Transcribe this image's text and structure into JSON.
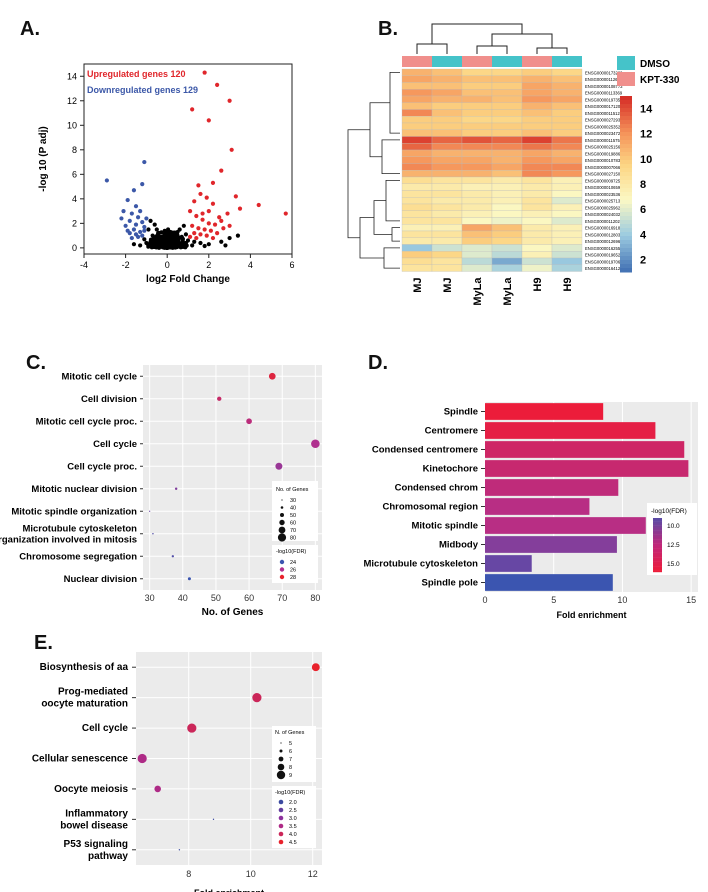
{
  "panel_labels": {
    "a": "A.",
    "b": "B.",
    "c": "C.",
    "d": "D.",
    "e": "E."
  },
  "chart_data": [
    {
      "panel": "A",
      "type": "scatter",
      "title": "",
      "xlabel": "log2 Fold Change",
      "ylabel": "-log 10 (P adj)",
      "xlim": [
        -4,
        6
      ],
      "ylim": [
        -0.5,
        15
      ],
      "xticks": [
        "-4",
        "-2",
        "0",
        "2",
        "4",
        "6"
      ],
      "yticks": [
        "0",
        "2",
        "4",
        "6",
        "8",
        "10",
        "12",
        "14"
      ],
      "annotations": {
        "up": "Upregulated genes 120",
        "down": "Downregulated genes 129"
      },
      "colors": {
        "up": "#e0262b",
        "down": "#3c58a8",
        "ns": "#000000"
      },
      "series": [
        {
          "name": "Upregulated",
          "color": "#e0262b",
          "points": [
            [
              1.8,
              14.3
            ],
            [
              2.4,
              13.3
            ],
            [
              1.2,
              11.3
            ],
            [
              3.0,
              12.0
            ],
            [
              2.0,
              10.4
            ],
            [
              3.1,
              8.0
            ],
            [
              2.6,
              6.3
            ],
            [
              2.2,
              5.3
            ],
            [
              1.5,
              5.1
            ],
            [
              3.3,
              4.2
            ],
            [
              4.4,
              3.5
            ],
            [
              5.7,
              2.8
            ],
            [
              2.9,
              2.8
            ],
            [
              3.5,
              3.2
            ],
            [
              1.6,
              4.4
            ],
            [
              1.9,
              4.1
            ],
            [
              1.3,
              3.8
            ],
            [
              2.2,
              3.6
            ],
            [
              1.1,
              3.0
            ],
            [
              2.5,
              2.5
            ],
            [
              1.4,
              2.6
            ],
            [
              1.7,
              2.3
            ],
            [
              2.0,
              2.0
            ],
            [
              2.3,
              1.9
            ],
            [
              1.2,
              1.8
            ],
            [
              1.5,
              1.6
            ],
            [
              1.8,
              1.5
            ],
            [
              2.1,
              1.4
            ],
            [
              2.7,
              1.6
            ],
            [
              1.3,
              1.2
            ],
            [
              1.6,
              1.1
            ],
            [
              1.9,
              1.0
            ],
            [
              2.4,
              1.2
            ],
            [
              1.1,
              0.9
            ],
            [
              1.4,
              0.8
            ],
            [
              2.2,
              0.8
            ],
            [
              3.0,
              1.8
            ],
            [
              2.6,
              2.2
            ],
            [
              1.7,
              2.8
            ],
            [
              2.0,
              3.0
            ]
          ]
        },
        {
          "name": "Downregulated",
          "color": "#3c58a8",
          "points": [
            [
              -2.9,
              5.5
            ],
            [
              -1.6,
              4.7
            ],
            [
              -1.2,
              5.2
            ],
            [
              -1.1,
              7.0
            ],
            [
              -1.9,
              3.9
            ],
            [
              -1.5,
              3.4
            ],
            [
              -1.3,
              3.0
            ],
            [
              -1.7,
              2.8
            ],
            [
              -2.1,
              3.0
            ],
            [
              -1.4,
              2.5
            ],
            [
              -1.8,
              2.2
            ],
            [
              -1.2,
              2.1
            ],
            [
              -1.5,
              1.9
            ],
            [
              -1.1,
              1.7
            ],
            [
              -1.6,
              1.5
            ],
            [
              -1.3,
              1.3
            ],
            [
              -1.9,
              1.4
            ],
            [
              -1.2,
              1.0
            ],
            [
              -1.4,
              0.9
            ],
            [
              -1.7,
              0.8
            ],
            [
              -2.0,
              1.8
            ],
            [
              -1.1,
              1.4
            ],
            [
              -1.5,
              1.1
            ],
            [
              -1.8,
              1.2
            ],
            [
              -2.2,
              2.4
            ],
            [
              -1.0,
              2.4
            ]
          ]
        },
        {
          "name": "Not significant",
          "color": "#000000",
          "points": [
            [
              -0.8,
              2.2
            ],
            [
              -0.6,
              1.9
            ],
            [
              -0.9,
              1.5
            ],
            [
              -0.4,
              1.2
            ],
            [
              -0.7,
              1.0
            ],
            [
              -0.5,
              0.8
            ],
            [
              -0.3,
              0.6
            ],
            [
              -0.8,
              0.5
            ],
            [
              -0.2,
              0.4
            ],
            [
              -0.6,
              0.3
            ],
            [
              -0.1,
              0.2
            ],
            [
              0.1,
              0.3
            ],
            [
              0.3,
              0.5
            ],
            [
              0.5,
              0.7
            ],
            [
              0.7,
              0.9
            ],
            [
              0.9,
              1.1
            ],
            [
              0.6,
              1.5
            ],
            [
              0.8,
              1.8
            ],
            [
              0.4,
              0.4
            ],
            [
              0.2,
              0.15
            ],
            [
              0.0,
              0.1
            ],
            [
              -0.4,
              0.25
            ],
            [
              0.6,
              0.25
            ],
            [
              0.9,
              0.4
            ],
            [
              1.0,
              0.6
            ],
            [
              1.3,
              0.5
            ],
            [
              1.6,
              0.4
            ],
            [
              2.0,
              0.3
            ],
            [
              2.6,
              0.5
            ],
            [
              3.0,
              0.8
            ],
            [
              3.4,
              1.0
            ],
            [
              2.8,
              0.2
            ],
            [
              1.8,
              0.15
            ],
            [
              -1.0,
              0.4
            ],
            [
              -1.3,
              0.2
            ],
            [
              -1.6,
              0.3
            ],
            [
              -1.1,
              0.7
            ],
            [
              -0.9,
              0.15
            ],
            [
              0.8,
              0.15
            ],
            [
              1.2,
              0.2
            ],
            [
              -0.5,
              1.5
            ],
            [
              0.5,
              1.3
            ],
            [
              -0.2,
              0.9
            ],
            [
              0.2,
              0.8
            ],
            [
              0.0,
              0.5
            ]
          ]
        }
      ]
    },
    {
      "panel": "B",
      "type": "heatmap",
      "columns": [
        "MJ",
        "MJ",
        "MyLa",
        "MyLa",
        "H9",
        "H9"
      ],
      "column_groups": [
        "KPT-330",
        "DMSO",
        "KPT-330",
        "DMSO",
        "KPT-330",
        "DMSO"
      ],
      "legend": [
        {
          "label": "DMSO",
          "color": "#45c3c9"
        },
        {
          "label": "KPT-330",
          "color": "#f08f8c"
        }
      ],
      "colorbar": {
        "ticks": [
          "14",
          "12",
          "10",
          "8",
          "6",
          "4",
          "2"
        ],
        "min": 1,
        "max": 15
      },
      "rows": [
        {
          "gene": "ENSG00000173209",
          "values": [
            11,
            10.5,
            9.5,
            9.5,
            10,
            9.5
          ]
        },
        {
          "gene": "ENSG00000112622",
          "values": [
            11.5,
            11,
            10.5,
            10.5,
            11,
            10.5
          ]
        },
        {
          "gene": "ENSG00000108773",
          "values": [
            10.5,
            10.5,
            10,
            10,
            11.5,
            11
          ]
        },
        {
          "gene": "ENSG00000113369",
          "values": [
            12,
            11.5,
            10.5,
            10.5,
            11.5,
            11
          ]
        },
        {
          "gene": "ENSG00000197355",
          "values": [
            11.5,
            11,
            11,
            10.5,
            12,
            11.5
          ]
        },
        {
          "gene": "ENSG00000171206",
          "values": [
            10.5,
            10,
            10,
            10,
            11,
            10.5
          ]
        },
        {
          "gene": "ENSG00000115129",
          "values": [
            12.5,
            10.5,
            10,
            10,
            10.5,
            10
          ]
        },
        {
          "gene": "ENSG00000272933",
          "values": [
            10,
            10,
            9.5,
            9.5,
            10,
            10
          ]
        },
        {
          "gene": "ENSG00000253522",
          "values": [
            10,
            10,
            10,
            10,
            10,
            10
          ]
        },
        {
          "gene": "ENSG00000234726",
          "values": [
            10.5,
            10.5,
            10,
            10,
            10.5,
            10
          ]
        },
        {
          "gene": "ENSG00000115758",
          "values": [
            14.5,
            13.5,
            14,
            13.5,
            14.5,
            13
          ]
        },
        {
          "gene": "ENSG00000251562",
          "values": [
            13.5,
            12.5,
            12.5,
            12.5,
            13,
            12.5
          ]
        },
        {
          "gene": "ENSG00000198860",
          "values": [
            11.5,
            11,
            11,
            11,
            11.5,
            11
          ]
        },
        {
          "gene": "ENSG00000107833",
          "values": [
            12,
            11.5,
            11.5,
            11,
            12,
            11.5
          ]
        },
        {
          "gene": "ENSG00000070669",
          "values": [
            12.5,
            12,
            12,
            11.5,
            12.5,
            12.5
          ]
        },
        {
          "gene": "ENSG00000271503",
          "values": [
            11,
            11,
            11,
            10.5,
            12.5,
            12
          ]
        },
        {
          "gene": "ENSG00000097258",
          "values": [
            9,
            8.5,
            8.5,
            8,
            8.5,
            7.5
          ]
        },
        {
          "gene": "ENSG00000106592",
          "values": [
            8,
            8,
            7.5,
            7.5,
            8,
            7.5
          ]
        },
        {
          "gene": "ENSG00000235366",
          "values": [
            8.5,
            8.5,
            8,
            7.5,
            8,
            7
          ]
        },
        {
          "gene": "ENSG00000257135",
          "values": [
            8.5,
            8,
            8,
            7.5,
            8.5,
            6
          ]
        },
        {
          "gene": "ENSG00000259620",
          "values": [
            9,
            8.5,
            8,
            7,
            8.5,
            7.5
          ]
        },
        {
          "gene": "ENSG00000240323",
          "values": [
            8.5,
            8,
            7.5,
            7,
            7.5,
            7
          ]
        },
        {
          "gene": "ENSG00000112025",
          "values": [
            8.5,
            8.5,
            7,
            6.5,
            7,
            6
          ]
        },
        {
          "gene": "ENSG00000169184",
          "values": [
            7.5,
            7.5,
            11.5,
            10.5,
            8,
            7.5
          ]
        },
        {
          "gene": "ENSG00000128039",
          "values": [
            8.5,
            8.5,
            10.5,
            10,
            8,
            7.5
          ]
        },
        {
          "gene": "ENSG00000126965",
          "values": [
            8,
            8,
            10,
            9.5,
            8,
            7.5
          ]
        },
        {
          "gene": "ENSG00000162557",
          "values": [
            4,
            5.5,
            6,
            5.5,
            7,
            6
          ]
        },
        {
          "gene": "ENSG00000196529",
          "values": [
            10,
            9.5,
            6,
            5,
            7.5,
            5.5
          ]
        },
        {
          "gene": "ENSG00000197064",
          "values": [
            9,
            8.5,
            5,
            3,
            5.5,
            4
          ]
        },
        {
          "gene": "ENSG00000164125",
          "values": [
            8.5,
            8.5,
            6,
            4.5,
            6.5,
            4.5
          ]
        }
      ]
    },
    {
      "panel": "C",
      "type": "scatter",
      "xlabel": "No. of Genes",
      "xlim": [
        28,
        82
      ],
      "xticks": [
        "30",
        "40",
        "50",
        "60",
        "70",
        "80"
      ],
      "categories": [
        "Mitotic cell cycle",
        "Cell division",
        "Mitotic cell cycle proc.",
        "Cell cycle",
        "Cell cycle proc.",
        "Mitotic nuclear division",
        "Mitotic spindle organization",
        "Microtubule cytoskeleton organization involved in mitosis",
        "Chromosome segregation",
        "Nuclear division"
      ],
      "category_lines": [
        [
          "Mitotic cell cycle"
        ],
        [
          "Cell division"
        ],
        [
          "Mitotic cell cycle proc."
        ],
        [
          "Cell cycle"
        ],
        [
          "Cell cycle proc."
        ],
        [
          "Mitotic nuclear division"
        ],
        [
          "Mitotic spindle organization"
        ],
        [
          "Microtubule cytoskeleton",
          "organization involved in mitosis"
        ],
        [
          "Chromosome segregation"
        ],
        [
          "Nuclear division"
        ]
      ],
      "x": [
        67,
        51,
        60,
        80,
        69,
        38,
        30,
        31,
        37,
        42
      ],
      "fdr": [
        27.5,
        26.5,
        26,
        25.5,
        25,
        24.5,
        24,
        23.5,
        23.5,
        23
      ],
      "size_legend": {
        "title": "No. of Genes",
        "labels": [
          "30",
          "40",
          "50",
          "60",
          "70",
          "80"
        ]
      },
      "color_legend": {
        "title": "-log10(FDR)",
        "labels": [
          "24",
          "26",
          "28"
        ]
      }
    },
    {
      "panel": "D",
      "type": "bar",
      "orientation": "horizontal",
      "xlabel": "Fold enrichment",
      "xlim": [
        0,
        15.5
      ],
      "xticks": [
        "0",
        "5",
        "10",
        "15"
      ],
      "categories": [
        "Spindle",
        "Centromere",
        "Condensed centromere",
        "Kinetochore",
        "Condensed chrom",
        "Chromosomal region",
        "Mitotic spindle",
        "Midbody",
        "Microtubule cytoskeleton",
        "Spindle pole"
      ],
      "values": [
        8.6,
        12.4,
        14.5,
        14.8,
        9.7,
        7.6,
        11.7,
        9.6,
        3.4,
        9.3
      ],
      "fdr": [
        16.5,
        16,
        14.5,
        14,
        13.5,
        13,
        13,
        11,
        10,
        8.5
      ],
      "colorbar": {
        "title": "-log10(FDR)",
        "ticks": [
          "10.0",
          "12.5",
          "15.0"
        ]
      }
    },
    {
      "panel": "E",
      "type": "scatter",
      "xlabel": "Fold enrichment",
      "xlim": [
        6.3,
        12.3
      ],
      "xticks": [
        "8",
        "10",
        "12"
      ],
      "categories": [
        "Biosynthesis of aa",
        "Prog-mediated oocyte maturation",
        "Cell cycle",
        "Cellular senescence",
        "Oocyte meiosis",
        "Inflammatory bowel disease",
        "P53 signaling pathway"
      ],
      "category_lines": [
        [
          "Biosynthesis of aa"
        ],
        [
          "Prog-mediated",
          "oocyte maturation"
        ],
        [
          "Cell cycle"
        ],
        [
          "Cellular senescence"
        ],
        [
          "Oocyte meiosis"
        ],
        [
          "Inflammatory",
          "bowel disease"
        ],
        [
          "P53 signaling",
          "pathway"
        ]
      ],
      "x": [
        12.1,
        10.2,
        8.1,
        6.5,
        7.0,
        8.8,
        7.7
      ],
      "genes": [
        7.5,
        8,
        8,
        8,
        7,
        5,
        5
      ],
      "fdr": [
        4.5,
        4.0,
        4.0,
        3.5,
        3.5,
        2.0,
        2.0
      ],
      "size_legend": {
        "title": "N. of Genes",
        "labels": [
          "5",
          "6",
          "7",
          "8",
          "9"
        ]
      },
      "color_legend": {
        "title": "-log10(FDR)",
        "labels": [
          "2.0",
          "2.5",
          "3.0",
          "3.5",
          "4.0",
          "4.5"
        ]
      }
    }
  ]
}
